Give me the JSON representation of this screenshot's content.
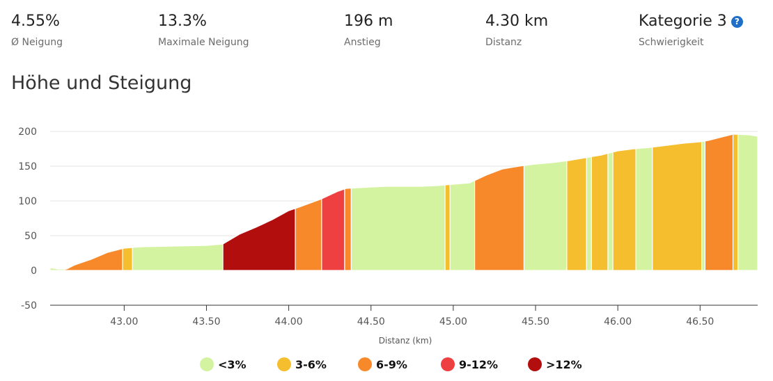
{
  "stats": [
    {
      "value": "4.55%",
      "label": "Ø Neigung"
    },
    {
      "value": "13.3%",
      "label": "Maximale Neigung"
    },
    {
      "value": "196 m",
      "label": "Anstieg"
    },
    {
      "value": "4.30 km",
      "label": "Distanz"
    },
    {
      "value": "Kategorie 3",
      "label": "Schwierigkeit",
      "icon": "help-icon",
      "icon_glyph": "?"
    }
  ],
  "section_title": "Höhe und Steigung",
  "chart_data": {
    "type": "area",
    "xlabel": "Distanz (km)",
    "ylabel": "",
    "xlim": [
      42.55,
      46.85
    ],
    "ylim": [
      -50,
      200
    ],
    "x_ticks": [
      "43.00",
      "43.50",
      "44.00",
      "44.50",
      "45.00",
      "45.50",
      "46.00",
      "46.50"
    ],
    "y_ticks": [
      "200",
      "150",
      "100",
      "50",
      "0",
      "-50"
    ],
    "grid": "horizontal",
    "legend_position": "bottom",
    "legend": [
      {
        "label": "<3%",
        "color": "#d4f3a0"
      },
      {
        "label": "3-6%",
        "color": "#f5be2e"
      },
      {
        "label": "6-9%",
        "color": "#f7892b"
      },
      {
        "label": "9-12%",
        "color": "#ee4040"
      },
      {
        "label": ">12%",
        "color": "#b30e0e"
      }
    ],
    "profile": [
      [
        42.55,
        4
      ],
      [
        42.6,
        2
      ],
      [
        42.65,
        2
      ],
      [
        42.7,
        8
      ],
      [
        42.8,
        16
      ],
      [
        42.9,
        26
      ],
      [
        43.0,
        32
      ],
      [
        43.1,
        34
      ],
      [
        43.3,
        35
      ],
      [
        43.5,
        36
      ],
      [
        43.6,
        38
      ],
      [
        43.7,
        52
      ],
      [
        43.8,
        62
      ],
      [
        43.9,
        73
      ],
      [
        44.0,
        86
      ],
      [
        44.05,
        90
      ],
      [
        44.2,
        103
      ],
      [
        44.3,
        114
      ],
      [
        44.35,
        118
      ],
      [
        44.5,
        120
      ],
      [
        44.6,
        121
      ],
      [
        44.8,
        121
      ],
      [
        44.9,
        122
      ],
      [
        45.0,
        124
      ],
      [
        45.1,
        126
      ],
      [
        45.2,
        137
      ],
      [
        45.3,
        146
      ],
      [
        45.4,
        150
      ],
      [
        45.5,
        153
      ],
      [
        45.6,
        155
      ],
      [
        45.7,
        158
      ],
      [
        45.8,
        162
      ],
      [
        45.9,
        166
      ],
      [
        46.0,
        172
      ],
      [
        46.1,
        175
      ],
      [
        46.2,
        177
      ],
      [
        46.3,
        180
      ],
      [
        46.4,
        183
      ],
      [
        46.5,
        185
      ],
      [
        46.55,
        187
      ],
      [
        46.65,
        193
      ],
      [
        46.7,
        196
      ],
      [
        46.8,
        195
      ],
      [
        46.85,
        193
      ]
    ],
    "segments": [
      {
        "from": 42.55,
        "to": 42.64,
        "class": "<3%"
      },
      {
        "from": 42.64,
        "to": 42.99,
        "class": "6-9%"
      },
      {
        "from": 42.99,
        "to": 43.05,
        "class": "3-6%"
      },
      {
        "from": 43.05,
        "to": 43.6,
        "class": "<3%"
      },
      {
        "from": 43.6,
        "to": 44.04,
        "class": ">12%"
      },
      {
        "from": 44.04,
        "to": 44.2,
        "class": "6-9%"
      },
      {
        "from": 44.2,
        "to": 44.34,
        "class": "9-12%"
      },
      {
        "from": 44.34,
        "to": 44.38,
        "class": "6-9%"
      },
      {
        "from": 44.38,
        "to": 44.95,
        "class": "<3%"
      },
      {
        "from": 44.95,
        "to": 44.98,
        "class": "3-6%"
      },
      {
        "from": 44.98,
        "to": 45.13,
        "class": "<3%"
      },
      {
        "from": 45.13,
        "to": 45.43,
        "class": "6-9%"
      },
      {
        "from": 45.43,
        "to": 45.69,
        "class": "<3%"
      },
      {
        "from": 45.69,
        "to": 45.81,
        "class": "3-6%"
      },
      {
        "from": 45.81,
        "to": 45.84,
        "class": "<3%"
      },
      {
        "from": 45.84,
        "to": 45.94,
        "class": "3-6%"
      },
      {
        "from": 45.94,
        "to": 45.97,
        "class": "<3%"
      },
      {
        "from": 45.97,
        "to": 46.11,
        "class": "3-6%"
      },
      {
        "from": 46.11,
        "to": 46.21,
        "class": "<3%"
      },
      {
        "from": 46.21,
        "to": 46.51,
        "class": "3-6%"
      },
      {
        "from": 46.51,
        "to": 46.53,
        "class": "<3%"
      },
      {
        "from": 46.53,
        "to": 46.7,
        "class": "6-9%"
      },
      {
        "from": 46.7,
        "to": 46.73,
        "class": "3-6%"
      },
      {
        "from": 46.73,
        "to": 46.85,
        "class": "<3%"
      }
    ]
  }
}
